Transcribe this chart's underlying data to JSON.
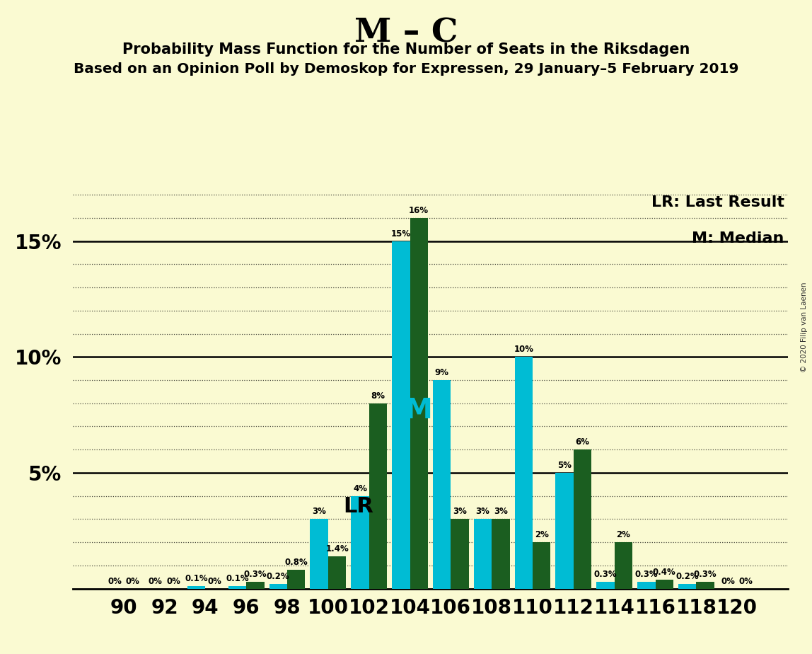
{
  "title": "M – C",
  "subtitle1": "Probability Mass Function for the Number of Seats in the Riksdagen",
  "subtitle2": "Based on an Opinion Poll by Demoskop for Expressen, 29 January–5 February 2019",
  "copyright": "© 2020 Filip van Laenen",
  "legend_lr": "LR: Last Result",
  "legend_m": "M: Median",
  "lr_label": "LR",
  "m_label": "M",
  "seats": [
    90,
    92,
    94,
    96,
    98,
    100,
    102,
    104,
    106,
    108,
    110,
    112,
    114,
    116,
    118,
    120
  ],
  "cyan_values": [
    0.0,
    0.0,
    0.1,
    0.1,
    0.2,
    3.0,
    4.0,
    15.0,
    9.0,
    3.0,
    10.0,
    5.0,
    0.3,
    0.3,
    0.2,
    0.0
  ],
  "green_values": [
    0.0,
    0.0,
    0.0,
    0.3,
    0.8,
    1.4,
    8.0,
    16.0,
    3.0,
    3.0,
    2.0,
    6.0,
    2.0,
    0.4,
    0.3,
    0.0
  ],
  "cyan_labels": [
    "0%",
    "0%",
    "0.1%",
    "0.1%",
    "0.2%",
    "3%",
    "4%",
    "15%",
    "9%",
    "3%",
    "10%",
    "5%",
    "0.3%",
    "0.3%",
    "0.2%",
    "0%"
  ],
  "green_labels": [
    "0%",
    "0%",
    "0%",
    "0.3%",
    "0.8%",
    "1.4%",
    "8%",
    "16%",
    "3%",
    "3%",
    "2%",
    "6%",
    "2%",
    "0.4%",
    "0.3%",
    "0%"
  ],
  "lr_seat_idx": 5,
  "m_seat_idx": 7,
  "cyan_color": "#00BCD4",
  "green_color": "#1B5E20",
  "background_color": "#FAFAD2",
  "ylim": [
    0,
    17.5
  ],
  "yticks": [
    0,
    5,
    10,
    15
  ],
  "ytick_labels": [
    "",
    "5%",
    "10%",
    "15%"
  ],
  "grid_minor": [
    1,
    2,
    3,
    4,
    6,
    7,
    8,
    9,
    11,
    12,
    13,
    14,
    16,
    17
  ]
}
